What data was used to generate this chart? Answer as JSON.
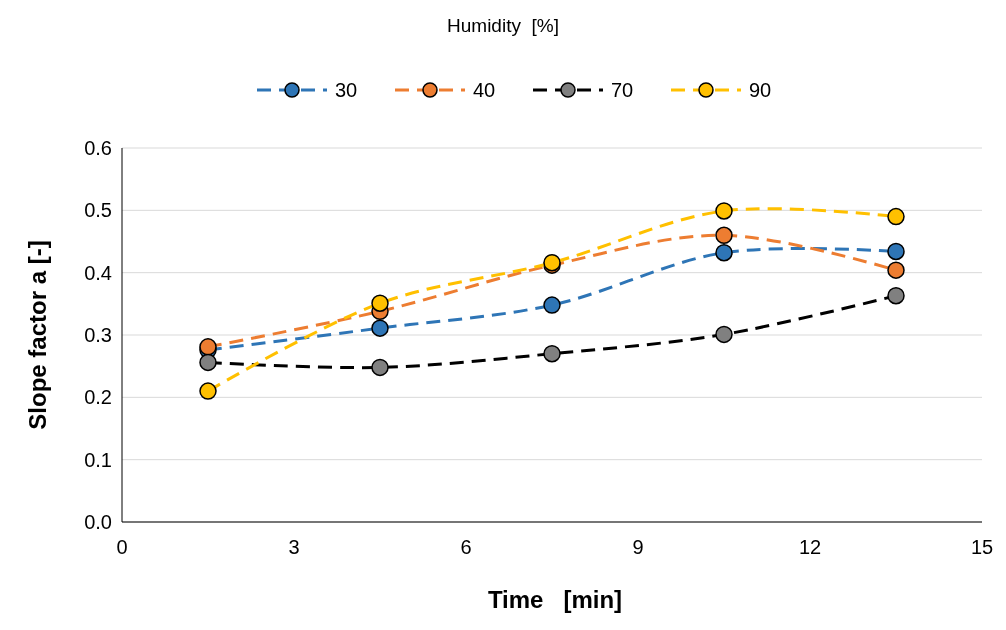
{
  "chart_data": {
    "type": "line",
    "legend_title": "Humidity  [%]",
    "xlabel": "Time   [min]",
    "ylabel": "Slope factor a [-]",
    "x": [
      1.5,
      4.5,
      7.5,
      10.5,
      13.5
    ],
    "series": [
      {
        "name": "30",
        "color": "#2e75b6",
        "values": [
          0.276,
          0.311,
          0.348,
          0.432,
          0.434
        ]
      },
      {
        "name": "40",
        "color": "#ed7d31",
        "values": [
          0.281,
          0.338,
          0.412,
          0.46,
          0.404
        ]
      },
      {
        "name": "70",
        "color": "#000000",
        "values": [
          0.256,
          0.248,
          0.27,
          0.301,
          0.363
        ]
      },
      {
        "name": "90",
        "color": "#ffc000",
        "values": [
          0.21,
          0.351,
          0.416,
          0.499,
          0.49
        ]
      }
    ],
    "xlim": [
      0,
      15
    ],
    "xticks": [
      0,
      3,
      6,
      9,
      12,
      15
    ],
    "ylim": [
      0,
      0.6
    ],
    "yticks": [
      {
        "value": 0,
        "label": "0.0"
      },
      {
        "value": 0.1,
        "label": "0.1"
      },
      {
        "value": 0.2,
        "label": "0.2"
      },
      {
        "value": 0.3,
        "label": "0.3"
      },
      {
        "value": 0.4,
        "label": "0.4"
      },
      {
        "value": 0.5,
        "label": "0.5"
      },
      {
        "value": 0.6,
        "label": "0.6"
      }
    ],
    "grid": "y",
    "legend": "top",
    "marker": "circle",
    "line_style": "dashed"
  }
}
